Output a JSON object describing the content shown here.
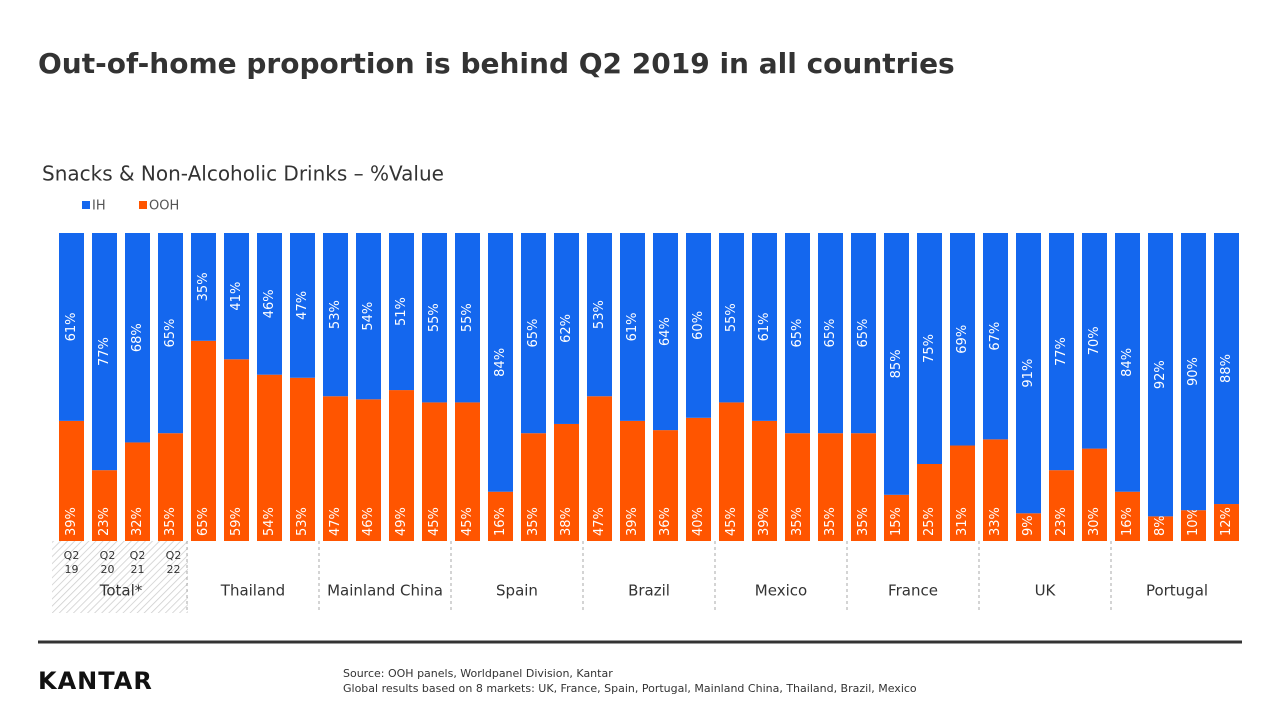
{
  "chart_data": {
    "type": "stacked_bar",
    "title": "Out-of-home proportion is behind Q2 2019 in all countries",
    "subtitle": "Snacks & Non-Alcoholic Drinks – %Value",
    "categories": [
      "Q2 19",
      "Q2 20",
      "Q2 21",
      "Q2 22",
      null,
      null,
      null,
      null,
      null,
      null,
      null,
      null,
      null,
      null,
      null,
      null,
      null,
      null,
      null,
      null,
      null,
      null,
      null,
      null,
      null,
      null,
      null,
      null,
      null,
      null,
      null,
      null,
      null,
      null,
      null,
      null
    ],
    "groups": [
      "Total*",
      "Thailand",
      "Mainland China",
      "Spain",
      "Brazil",
      "Mexico",
      "France",
      "UK",
      "Portugal"
    ],
    "ylim": [
      0,
      100
    ],
    "series": [
      {
        "name": "IH",
        "color": "#1467ee",
        "values": [
          61,
          77,
          68,
          65,
          35,
          41,
          46,
          47,
          53,
          54,
          51,
          55,
          55,
          84,
          65,
          62,
          53,
          61,
          64,
          60,
          55,
          61,
          65,
          65,
          65,
          85,
          75,
          69,
          67,
          91,
          77,
          70,
          84,
          92,
          90,
          88
        ],
        "value_labels": [
          "61%",
          "77%",
          "68%",
          "65%",
          "35%",
          "41%",
          "46%",
          "47%",
          "53%",
          "54%",
          "51%",
          "55%",
          "55%",
          "84%",
          "65%",
          "62%",
          "53%",
          "61%",
          "64%",
          "60%",
          "55%",
          "61%",
          "65%",
          "65%",
          "65%",
          "85%",
          "75%",
          "69%",
          "67%",
          "91%",
          "77%",
          "70%",
          "84%",
          "92%",
          "90%",
          "88%"
        ]
      },
      {
        "name": "OOH",
        "color": "#ff5500",
        "values": [
          39,
          23,
          32,
          35,
          65,
          59,
          54,
          53,
          47,
          46,
          49,
          45,
          45,
          16,
          35,
          38,
          47,
          39,
          36,
          40,
          45,
          39,
          35,
          35,
          35,
          15,
          25,
          31,
          33,
          9,
          23,
          30,
          16,
          8,
          10,
          12
        ],
        "value_labels": [
          "39%",
          "23%",
          "32%",
          "35%",
          "65%",
          "59%",
          "54%",
          "53%",
          "47%",
          "46%",
          "49%",
          "45%",
          "45%",
          "16%",
          "35%",
          "38%",
          "47%",
          "39%",
          "36%",
          "40%",
          "45%",
          "39%",
          "35%",
          "35%",
          "35%",
          "15%",
          "25%",
          "31%",
          "33%",
          "9%",
          "23%",
          "30%",
          "16%",
          "8%",
          "10%",
          "12%"
        ]
      }
    ],
    "source": [
      "Source: OOH panels, Worldpanel Division, Kantar",
      "Global results based on 8 markets: UK, France, Spain, Portugal, Mainland China, Thailand, Brazil, Mexico"
    ],
    "logo": "KANTAR"
  }
}
